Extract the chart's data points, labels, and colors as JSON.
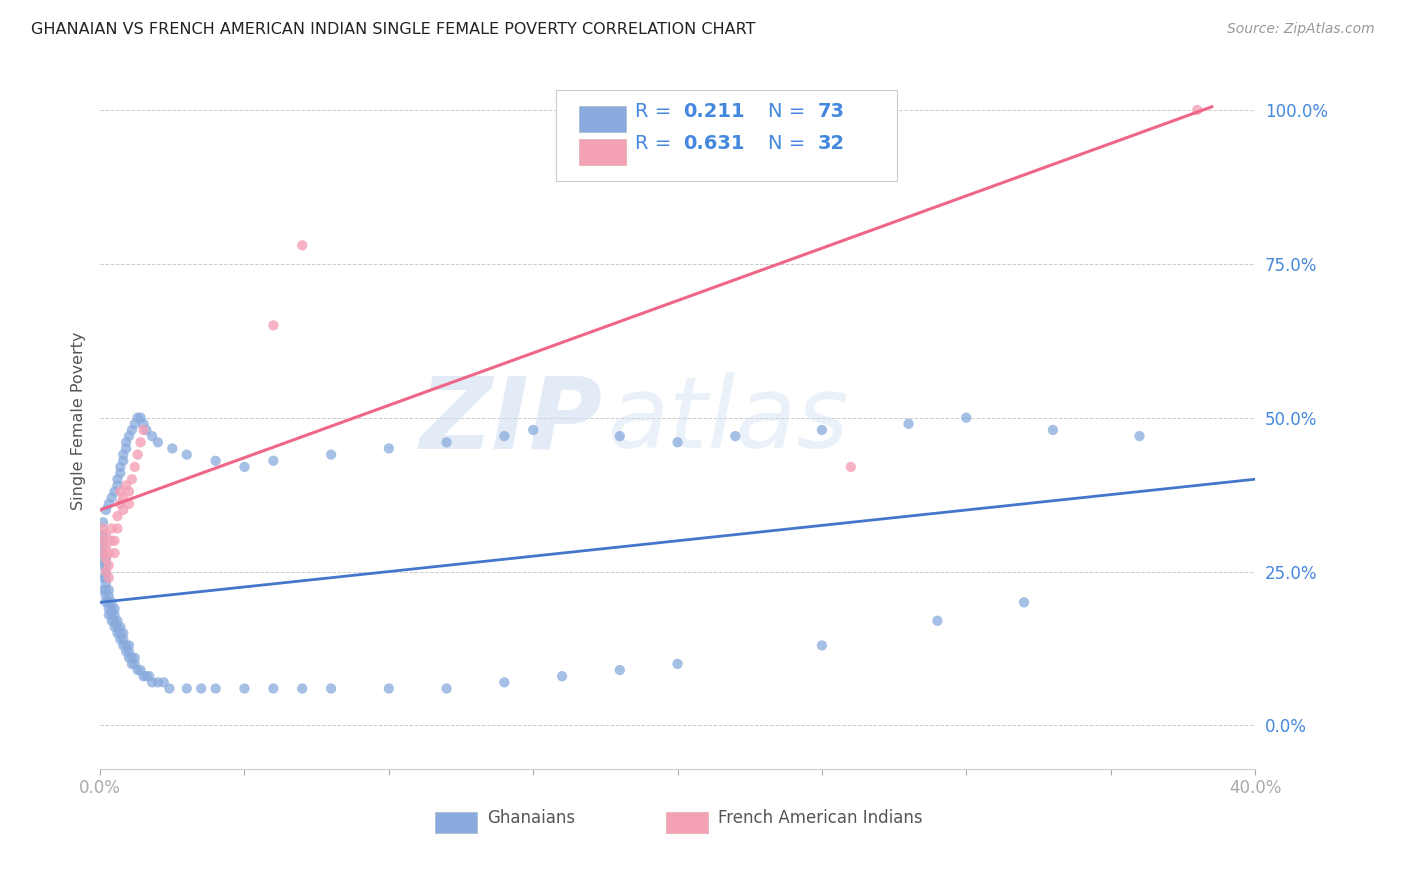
{
  "title": "GHANAIAN VS FRENCH AMERICAN INDIAN SINGLE FEMALE POVERTY CORRELATION CHART",
  "source": "Source: ZipAtlas.com",
  "ylabel": "Single Female Poverty",
  "yticks": [
    "0.0%",
    "25.0%",
    "50.0%",
    "75.0%",
    "100.0%"
  ],
  "ytick_vals": [
    0.0,
    0.25,
    0.5,
    0.75,
    1.0
  ],
  "legend_r1": "R = 0.211",
  "legend_n1": "N = 73",
  "legend_r2": "R = 0.631",
  "legend_n2": "N = 32",
  "ghanaian_color": "#88AADD",
  "french_color": "#F4A0B5",
  "trendline_ghanaian_color": "#4477CC",
  "trendline_french_color": "#EE6688",
  "watermark_zip": "ZIP",
  "watermark_atlas": "atlas",
  "xlim": [
    0.0,
    0.4
  ],
  "ylim": [
    -0.07,
    1.06
  ],
  "ghanaian_x": [
    0.001,
    0.001,
    0.001,
    0.001,
    0.001,
    0.001,
    0.001,
    0.001,
    0.001,
    0.002,
    0.002,
    0.002,
    0.002,
    0.002,
    0.002,
    0.002,
    0.002,
    0.003,
    0.003,
    0.003,
    0.003,
    0.003,
    0.004,
    0.004,
    0.004,
    0.004,
    0.005,
    0.005,
    0.005,
    0.005,
    0.006,
    0.006,
    0.006,
    0.007,
    0.007,
    0.007,
    0.008,
    0.008,
    0.008,
    0.009,
    0.009,
    0.01,
    0.01,
    0.01,
    0.011,
    0.011,
    0.012,
    0.012,
    0.013,
    0.014,
    0.015,
    0.016,
    0.017,
    0.018,
    0.02,
    0.022,
    0.024,
    0.03,
    0.035,
    0.04,
    0.05,
    0.06,
    0.07,
    0.08,
    0.1,
    0.12,
    0.14,
    0.16,
    0.18,
    0.2,
    0.25,
    0.29,
    0.32
  ],
  "ghanaian_y": [
    0.22,
    0.24,
    0.26,
    0.27,
    0.28,
    0.28,
    0.29,
    0.3,
    0.31,
    0.2,
    0.21,
    0.22,
    0.23,
    0.24,
    0.25,
    0.26,
    0.27,
    0.18,
    0.19,
    0.2,
    0.21,
    0.22,
    0.17,
    0.18,
    0.19,
    0.2,
    0.16,
    0.17,
    0.18,
    0.19,
    0.15,
    0.16,
    0.17,
    0.14,
    0.15,
    0.16,
    0.13,
    0.14,
    0.15,
    0.12,
    0.13,
    0.11,
    0.12,
    0.13,
    0.1,
    0.11,
    0.1,
    0.11,
    0.09,
    0.09,
    0.08,
    0.08,
    0.08,
    0.07,
    0.07,
    0.07,
    0.06,
    0.06,
    0.06,
    0.06,
    0.06,
    0.06,
    0.06,
    0.06,
    0.06,
    0.06,
    0.07,
    0.08,
    0.09,
    0.1,
    0.13,
    0.17,
    0.2
  ],
  "ghanaian_x2": [
    0.001,
    0.002,
    0.003,
    0.004,
    0.005,
    0.006,
    0.006,
    0.007,
    0.007,
    0.008,
    0.008,
    0.009,
    0.009,
    0.01,
    0.011,
    0.012,
    0.013,
    0.014,
    0.015,
    0.016,
    0.018,
    0.02,
    0.025,
    0.03,
    0.04,
    0.05,
    0.06,
    0.08,
    0.1,
    0.12,
    0.14,
    0.15,
    0.18,
    0.2,
    0.22,
    0.25,
    0.28,
    0.3,
    0.33,
    0.36
  ],
  "ghanaian_y2": [
    0.33,
    0.35,
    0.36,
    0.37,
    0.38,
    0.39,
    0.4,
    0.41,
    0.42,
    0.43,
    0.44,
    0.45,
    0.46,
    0.47,
    0.48,
    0.49,
    0.5,
    0.5,
    0.49,
    0.48,
    0.47,
    0.46,
    0.45,
    0.44,
    0.43,
    0.42,
    0.43,
    0.44,
    0.45,
    0.46,
    0.47,
    0.48,
    0.47,
    0.46,
    0.47,
    0.48,
    0.49,
    0.5,
    0.48,
    0.47
  ],
  "french_x": [
    0.001,
    0.001,
    0.001,
    0.002,
    0.002,
    0.002,
    0.002,
    0.003,
    0.003,
    0.003,
    0.004,
    0.004,
    0.005,
    0.005,
    0.006,
    0.006,
    0.007,
    0.007,
    0.008,
    0.008,
    0.009,
    0.01,
    0.01,
    0.011,
    0.012,
    0.013,
    0.014,
    0.015,
    0.06,
    0.07,
    0.26,
    0.38
  ],
  "french_y": [
    0.28,
    0.3,
    0.32,
    0.25,
    0.27,
    0.29,
    0.31,
    0.24,
    0.26,
    0.28,
    0.3,
    0.32,
    0.28,
    0.3,
    0.32,
    0.34,
    0.36,
    0.38,
    0.35,
    0.37,
    0.39,
    0.36,
    0.38,
    0.4,
    0.42,
    0.44,
    0.46,
    0.48,
    0.65,
    0.78,
    0.42,
    1.0
  ],
  "ghanaian_trend_x": [
    0.0,
    0.4
  ],
  "ghanaian_trend_y": [
    0.2,
    0.4
  ],
  "french_trend_x": [
    0.0,
    0.385
  ],
  "french_trend_y": [
    0.35,
    1.005
  ],
  "background_color": "#FFFFFF",
  "grid_color": "#CCCCCC",
  "tick_color": "#4488DD",
  "legend_text_color": "#4488DD",
  "title_color": "#222222",
  "axis_label_color": "#555555"
}
